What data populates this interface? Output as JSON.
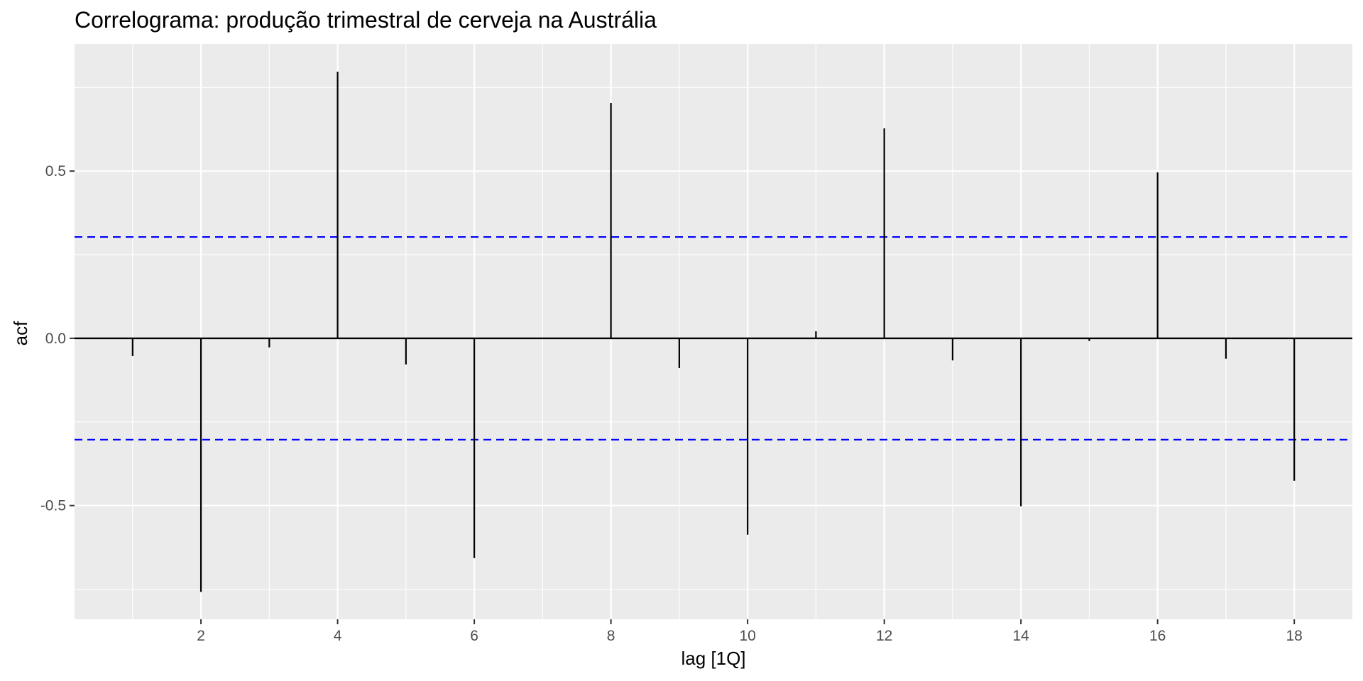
{
  "chart_data": {
    "type": "bar",
    "subtype": "correlogram",
    "title": "Correlograma: produção trimestral de cerveja na Austrália",
    "xlabel": "lag [1Q]",
    "ylabel": "acf",
    "x": [
      1,
      2,
      3,
      4,
      5,
      6,
      7,
      8,
      9,
      10,
      11,
      12,
      13,
      14,
      15,
      16,
      17,
      18
    ],
    "values": [
      -0.053,
      -0.758,
      -0.027,
      0.797,
      -0.078,
      -0.657,
      0.0,
      0.704,
      -0.089,
      -0.587,
      0.021,
      0.628,
      -0.066,
      -0.502,
      -0.008,
      0.496,
      -0.061,
      -0.426
    ],
    "significance_bounds": [
      0.303,
      -0.303
    ],
    "xlim": [
      0.15,
      18.85
    ],
    "ylim": [
      -0.84,
      0.88
    ],
    "x_ticks": [
      2,
      4,
      6,
      8,
      10,
      12,
      14,
      16,
      18
    ],
    "y_ticks": [
      -0.5,
      0.0,
      0.5
    ],
    "y_tick_labels": [
      "-0.5",
      "0.0",
      "0.5"
    ],
    "grid": true,
    "legend": "none",
    "colors": {
      "panel_background": "#ebebeb",
      "grid": "#ffffff",
      "spike": "#000000",
      "bound_line": "#0000ff",
      "tick_label": "#4d4d4d",
      "tick_mark": "#333333"
    }
  }
}
